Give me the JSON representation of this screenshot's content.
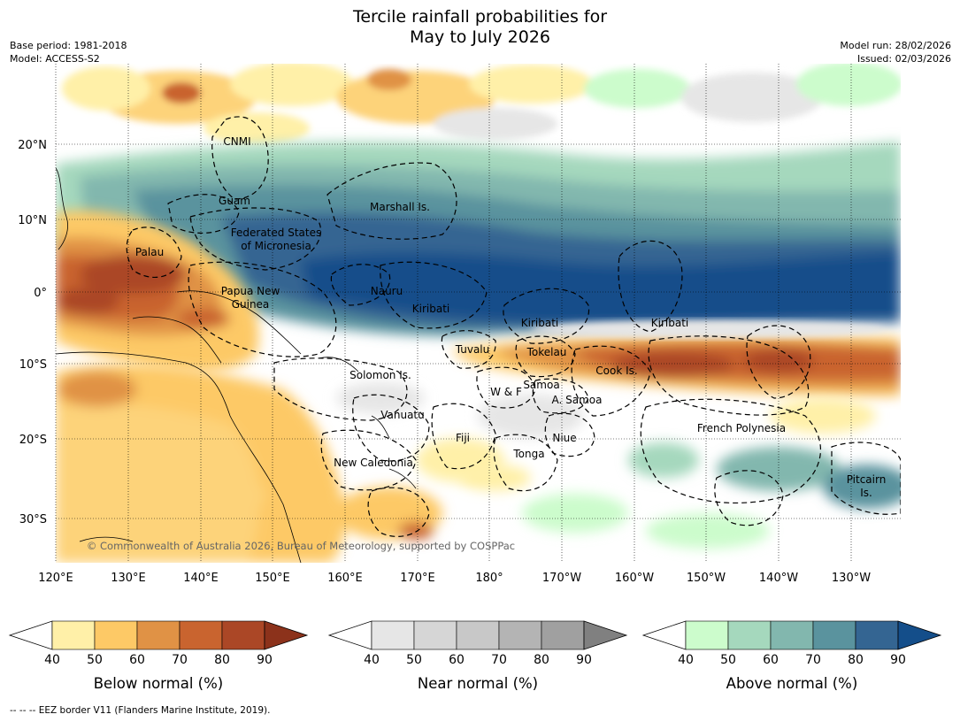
{
  "title_line1": "Tercile rainfall probabilities for",
  "title_line2": "May to July 2026",
  "meta": {
    "base_period": "Base period: 1981-2018",
    "model": "Model: ACCESS-S2",
    "model_run": "Model run: 28/02/2026",
    "issued": "Issued: 02/03/2026"
  },
  "lat_labels": [
    "20°N",
    "10°N",
    "0°",
    "10°S",
    "20°S",
    "30°S"
  ],
  "lon_labels": [
    "120°E",
    "130°E",
    "140°E",
    "150°E",
    "160°E",
    "170°E",
    "180°",
    "170°W",
    "160°W",
    "150°W",
    "140°W",
    "130°W"
  ],
  "places": {
    "cnmi": "CNMI",
    "guam": "Guam",
    "marshall": "Marshall Is.",
    "fsm1": "Federated States",
    "fsm2": "of Micronesia",
    "palau": "Palau",
    "png1": "Papua New",
    "png2": "Guinea",
    "nauru": "Nauru",
    "kiribati_w": "Kiribati",
    "kiribati_c": "Kiribati",
    "kiribati_e": "Kiribati",
    "tuvalu": "Tuvalu",
    "tokelau": "Tokelau",
    "cook": "Cook Is.",
    "solomon": "Solomon Is.",
    "wf": "W & F",
    "samoa": "Samoa",
    "asamoa": "A. Samoa",
    "vanuatu": "Vanuatu",
    "fiji": "Fiji",
    "niue": "Niue",
    "tonga": "Tonga",
    "french_polynesia": "French Polynesia",
    "new_caledonia": "New Caledonia",
    "pitcairn1": "Pitcairn",
    "pitcairn2": "Is."
  },
  "copyright": "© Commonwealth of Australia 2026, Bureau of Meteorology, supported by COSPPac",
  "colorbars": [
    {
      "title": "Below normal (%)",
      "ticks": [
        "40",
        "50",
        "60",
        "70",
        "80",
        "90"
      ],
      "colors": [
        "#fff0a8",
        "#fdc966",
        "#e09245",
        "#c9642f",
        "#ab4726",
        "#8c321b"
      ]
    },
    {
      "title": "Near normal (%)",
      "ticks": [
        "40",
        "50",
        "60",
        "70",
        "80",
        "90"
      ],
      "colors": [
        "#e6e6e6",
        "#d6d6d6",
        "#c8c8c8",
        "#b4b4b4",
        "#a0a0a0",
        "#808080"
      ]
    },
    {
      "title": "Above normal (%)",
      "ticks": [
        "40",
        "50",
        "60",
        "70",
        "80",
        "90"
      ],
      "colors": [
        "#ccfccc",
        "#a5d8bd",
        "#82b7ae",
        "#5a939e",
        "#346592",
        "#144e8a"
      ]
    }
  ],
  "footer": "--  --  -- EEZ border V11 (Flanders Marine Institute, 2019)."
}
